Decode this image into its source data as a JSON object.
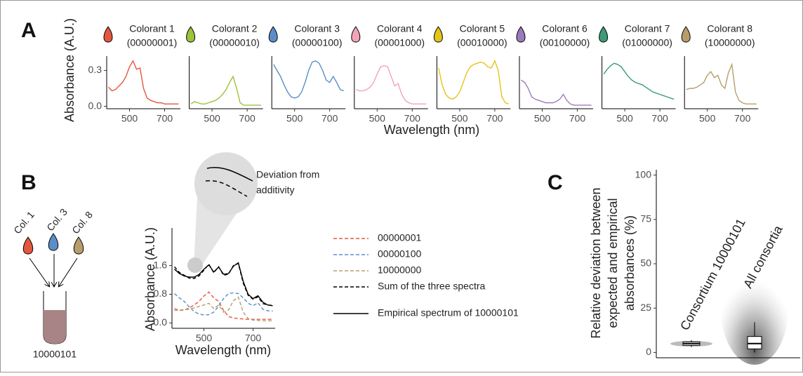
{
  "figure": {
    "panel_labels": [
      "A",
      "B",
      "C"
    ],
    "drops": [
      "Col. 1",
      "Col. 3",
      "Col. 8"
    ],
    "tube": "10000101"
  },
  "chart_data": [
    {
      "type": "line",
      "title": "Colorant 1",
      "subtitle": "(00000001)",
      "ylabel": "Absorbance (A.U.)",
      "xlabel": "Wavelength (nm)",
      "x": [
        380,
        400,
        420,
        440,
        460,
        480,
        500,
        520,
        540,
        560,
        580,
        600,
        620,
        640,
        660,
        680,
        700,
        720,
        740,
        760,
        780
      ],
      "series": [
        {
          "color": "#e4573f",
          "values": [
            0.16,
            0.13,
            0.14,
            0.17,
            0.2,
            0.25,
            0.33,
            0.38,
            0.31,
            0.32,
            0.15,
            0.07,
            0.05,
            0.04,
            0.03,
            0.03,
            0.02,
            0.02,
            0.02,
            0.02,
            0.02
          ]
        }
      ],
      "xlim": [
        370,
        790
      ],
      "xticks": [
        500,
        700
      ],
      "ylim": [
        -0.02,
        0.42
      ],
      "yticks": [
        {
          "value": 0,
          "label": "0.0"
        },
        0.3
      ]
    },
    {
      "type": "line",
      "title": "Colorant 2",
      "subtitle": "(00000010)",
      "x": [
        380,
        400,
        420,
        440,
        460,
        480,
        500,
        520,
        540,
        560,
        580,
        600,
        620,
        640,
        660,
        680,
        700,
        720,
        740,
        760,
        780
      ],
      "series": [
        {
          "color": "#9cc33a",
          "values": [
            0.02,
            0.04,
            0.03,
            0.02,
            0.02,
            0.03,
            0.04,
            0.05,
            0.07,
            0.1,
            0.14,
            0.2,
            0.25,
            0.15,
            0.03,
            0.01,
            0.01,
            0.01,
            0.01,
            0.01,
            0.01
          ]
        }
      ],
      "xlim": [
        370,
        790
      ],
      "xticks": [
        500,
        700
      ],
      "ylim": [
        -0.02,
        0.42
      ]
    },
    {
      "type": "line",
      "title": "Colorant 3",
      "subtitle": "(00000100)",
      "x": [
        380,
        400,
        420,
        440,
        460,
        480,
        500,
        520,
        540,
        560,
        580,
        600,
        620,
        640,
        660,
        680,
        700,
        720,
        740,
        760,
        780
      ],
      "series": [
        {
          "color": "#5b8ec9",
          "values": [
            0.35,
            0.3,
            0.25,
            0.18,
            0.12,
            0.08,
            0.07,
            0.08,
            0.12,
            0.2,
            0.3,
            0.37,
            0.38,
            0.36,
            0.3,
            0.22,
            0.2,
            0.25,
            0.2,
            0.14,
            0.13
          ]
        }
      ],
      "xlim": [
        370,
        790
      ],
      "xticks": [
        500,
        700
      ],
      "ylim": [
        -0.02,
        0.42
      ]
    },
    {
      "type": "line",
      "title": "Colorant 4",
      "subtitle": "(00001000)",
      "x": [
        380,
        400,
        420,
        440,
        460,
        480,
        500,
        520,
        540,
        560,
        580,
        600,
        620,
        640,
        660,
        680,
        700,
        720,
        740,
        760,
        780
      ],
      "series": [
        {
          "color": "#f2a3b8",
          "values": [
            0.14,
            0.13,
            0.13,
            0.14,
            0.16,
            0.2,
            0.27,
            0.33,
            0.34,
            0.33,
            0.25,
            0.17,
            0.19,
            0.1,
            0.05,
            0.03,
            0.02,
            0.02,
            0.02,
            0.02,
            0.02
          ]
        }
      ],
      "xlim": [
        370,
        790
      ],
      "xticks": [
        500,
        700
      ],
      "ylim": [
        -0.02,
        0.42
      ]
    },
    {
      "type": "line",
      "title": "Colorant 5",
      "subtitle": "(00010000)",
      "x": [
        380,
        400,
        420,
        440,
        460,
        480,
        500,
        520,
        540,
        560,
        580,
        600,
        620,
        640,
        660,
        680,
        700,
        720,
        740,
        760,
        780
      ],
      "series": [
        {
          "color": "#e3c41a",
          "values": [
            0.32,
            0.18,
            0.1,
            0.07,
            0.06,
            0.08,
            0.12,
            0.2,
            0.28,
            0.33,
            0.35,
            0.36,
            0.37,
            0.36,
            0.33,
            0.32,
            0.38,
            0.3,
            0.08,
            0.03,
            0.02
          ]
        }
      ],
      "xlim": [
        370,
        790
      ],
      "xticks": [
        500,
        700
      ],
      "ylim": [
        -0.02,
        0.42
      ]
    },
    {
      "type": "line",
      "title": "Colorant 6",
      "subtitle": "(00100000)",
      "x": [
        380,
        400,
        420,
        440,
        460,
        480,
        500,
        520,
        540,
        560,
        580,
        600,
        620,
        640,
        660,
        680,
        700,
        720,
        740,
        760,
        780
      ],
      "series": [
        {
          "color": "#9b7bbf",
          "values": [
            0.22,
            0.2,
            0.15,
            0.08,
            0.06,
            0.05,
            0.04,
            0.03,
            0.03,
            0.03,
            0.04,
            0.06,
            0.1,
            0.05,
            0.02,
            0.01,
            0.01,
            0.01,
            0.01,
            0.01,
            0.01
          ]
        }
      ],
      "xlim": [
        370,
        790
      ],
      "xticks": [
        500,
        700
      ],
      "ylim": [
        -0.02,
        0.42
      ]
    },
    {
      "type": "line",
      "title": "Colorant 7",
      "subtitle": "(01000000)",
      "x": [
        380,
        400,
        420,
        440,
        460,
        480,
        500,
        520,
        540,
        560,
        580,
        600,
        620,
        640,
        660,
        680,
        700,
        720,
        740,
        760,
        780
      ],
      "series": [
        {
          "color": "#3d9c78",
          "values": [
            0.27,
            0.31,
            0.34,
            0.36,
            0.35,
            0.33,
            0.29,
            0.25,
            0.22,
            0.2,
            0.19,
            0.18,
            0.16,
            0.14,
            0.12,
            0.11,
            0.1,
            0.09,
            0.08,
            0.07,
            0.06
          ]
        }
      ],
      "xlim": [
        370,
        790
      ],
      "xticks": [
        500,
        700
      ],
      "ylim": [
        -0.02,
        0.42
      ]
    },
    {
      "type": "line",
      "title": "Colorant 8",
      "subtitle": "(10000000)",
      "x": [
        380,
        400,
        420,
        440,
        460,
        480,
        500,
        520,
        540,
        560,
        580,
        600,
        620,
        640,
        660,
        680,
        700,
        720,
        740,
        760,
        780
      ],
      "series": [
        {
          "color": "#b89e6b",
          "values": [
            0.14,
            0.15,
            0.15,
            0.16,
            0.18,
            0.2,
            0.26,
            0.29,
            0.24,
            0.26,
            0.18,
            0.15,
            0.28,
            0.35,
            0.12,
            0.05,
            0.03,
            0.02,
            0.02,
            0.02,
            0.02
          ]
        }
      ],
      "xlim": [
        370,
        790
      ],
      "xticks": [
        500,
        700
      ],
      "ylim": [
        -0.02,
        0.42
      ]
    },
    {
      "type": "line",
      "ylabel": "Absorbance (A.U.)",
      "xlabel": "Wavelength (nm)",
      "annotation": [
        "Deviation from",
        "additivity"
      ],
      "x": [
        380,
        400,
        420,
        440,
        460,
        480,
        500,
        520,
        540,
        560,
        580,
        600,
        620,
        640,
        660,
        680,
        700,
        720,
        740,
        760,
        780
      ],
      "series": [
        {
          "name": "00000001",
          "color": "#e4573f",
          "dashed": true,
          "values": [
            0.4,
            0.35,
            0.36,
            0.42,
            0.5,
            0.6,
            0.75,
            0.86,
            0.7,
            0.6,
            0.35,
            0.18,
            0.14,
            0.12,
            0.11,
            0.1,
            0.1,
            0.1,
            0.1,
            0.1,
            0.1
          ]
        },
        {
          "name": "00000100",
          "color": "#5b8ec9",
          "dashed": true,
          "values": [
            0.82,
            0.7,
            0.6,
            0.45,
            0.32,
            0.25,
            0.22,
            0.23,
            0.3,
            0.47,
            0.68,
            0.82,
            0.84,
            0.82,
            0.7,
            0.55,
            0.48,
            0.56,
            0.38,
            0.34,
            0.33
          ]
        },
        {
          "name": "10000000",
          "color": "#b89e6b",
          "dashed": true,
          "values": [
            0.35,
            0.36,
            0.37,
            0.38,
            0.42,
            0.46,
            0.5,
            0.55,
            0.4,
            0.5,
            0.3,
            0.36,
            0.62,
            0.72,
            0.3,
            0.12,
            0.08,
            0.07,
            0.06,
            0.06,
            0.06
          ]
        },
        {
          "name": "Sum of the three spectra",
          "color": "#000000",
          "dashed": true,
          "values": [
            1.57,
            1.41,
            1.33,
            1.25,
            1.24,
            1.31,
            1.47,
            1.64,
            1.4,
            1.57,
            1.33,
            1.36,
            1.6,
            1.66,
            1.11,
            0.77,
            0.66,
            0.73,
            0.54,
            0.5,
            0.49
          ]
        },
        {
          "name": "Empirical spectrum of 10000101",
          "color": "#000000",
          "dashed": false,
          "values": [
            1.5,
            1.38,
            1.31,
            1.28,
            1.28,
            1.35,
            1.5,
            1.62,
            1.42,
            1.56,
            1.36,
            1.38,
            1.58,
            1.68,
            1.16,
            0.8,
            0.68,
            0.76,
            0.58,
            0.5,
            0.48
          ]
        }
      ],
      "xlim": [
        370,
        790
      ],
      "xticks": [
        500,
        700
      ],
      "ylim": [
        -0.15,
        2.65
      ],
      "yticks": [
        {
          "value": 0,
          "label": "0.0"
        },
        0.8,
        1.6
      ]
    },
    {
      "type": "box",
      "ylabel": [
        "Relative deviation between",
        "expected and empirical",
        "absorbances (%)"
      ],
      "categories": [
        "Consortium 10000101",
        "All consortia"
      ],
      "boxes": [
        {
          "min": 3,
          "q1": 4,
          "median": 5,
          "q3": 6,
          "max": 7
        },
        {
          "min": 0,
          "q1": 2,
          "median": 5,
          "q3": 9,
          "max": 17
        }
      ],
      "ylim": [
        -3,
        103
      ],
      "yticks": [
        0,
        25,
        50,
        75,
        100
      ]
    }
  ]
}
